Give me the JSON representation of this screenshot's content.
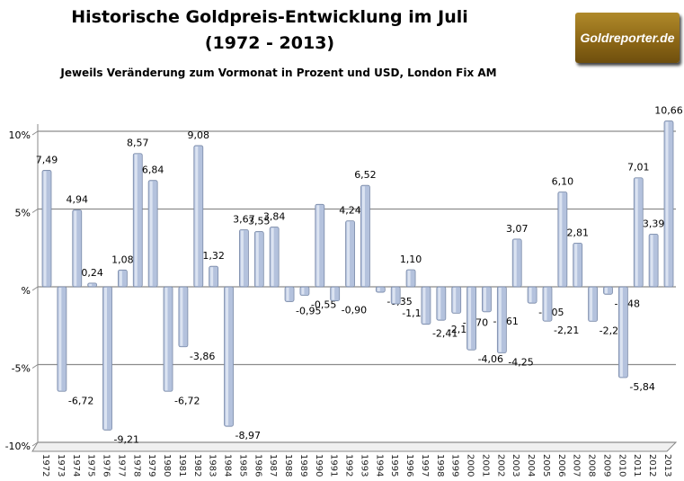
{
  "chart_data": {
    "type": "bar",
    "title": "Historische Goldpreis-Entwicklung im Juli",
    "title_line2": "(1972 - 2013)",
    "subtitle": "Jeweils Veränderung zum Vormonat in Prozent und USD, London Fix AM",
    "xlabel": "",
    "ylabel": "",
    "ylim": [
      -10,
      10
    ],
    "yticks": [
      10,
      5,
      0,
      -5,
      -10
    ],
    "ytick_labels": [
      "10%",
      "5%",
      "%",
      "-5%",
      "-10%"
    ],
    "grid": true,
    "bar_color": "#b4c2dd",
    "categories": [
      "1972",
      "1973",
      "1974",
      "1975",
      "1976",
      "1977",
      "1978",
      "1979",
      "1980",
      "1981",
      "1982",
      "1983",
      "1984",
      "1985",
      "1986",
      "1987",
      "1988",
      "1989",
      "1990",
      "1991",
      "1992",
      "1993",
      "1994",
      "1995",
      "1996",
      "1997",
      "1998",
      "1999",
      "2000",
      "2001",
      "2002",
      "2003",
      "2004",
      "2005",
      "2006",
      "2007",
      "2008",
      "2009",
      "2010",
      "2011",
      "2012",
      "2013"
    ],
    "values": [
      7.49,
      -6.72,
      4.94,
      0.24,
      -9.21,
      1.08,
      8.57,
      6.84,
      -6.72,
      -3.86,
      9.08,
      1.32,
      -8.97,
      3.67,
      3.55,
      3.84,
      -0.95,
      -0.55,
      5.3,
      -0.9,
      4.24,
      6.52,
      -0.35,
      -1.1,
      1.1,
      -2.41,
      -2.15,
      -1.7,
      -4.06,
      -1.61,
      -4.25,
      3.07,
      -1.05,
      -2.21,
      6.1,
      2.81,
      -2.22,
      -0.48,
      -5.84,
      7.01,
      3.39,
      10.66
    ],
    "data_labels": [
      "7,49",
      "-6,72",
      "4,94",
      "0,24",
      "-9,21",
      "1,08",
      "8,57",
      "6,84",
      "-6,72",
      "-3,86",
      "9,08",
      "1,32",
      "-8,97",
      "3,67",
      "3,55",
      "3,84",
      "-0,95",
      "-0,55",
      "",
      "-0,90",
      "4,24",
      "6,52",
      "-0,35",
      "-1,10",
      "1,10",
      "-2,41",
      "-2,15",
      "-1,70",
      "-4,06",
      "-1,61",
      "-4,25",
      "3,07",
      "-1,05",
      "-2,21",
      "6,10",
      "2,81",
      "-2,22",
      "-0,48",
      "-5,84",
      "7,01",
      "3,39",
      "10,66"
    ]
  },
  "logo": {
    "text": "Goldreporter.de",
    "color": "#8a6515"
  }
}
